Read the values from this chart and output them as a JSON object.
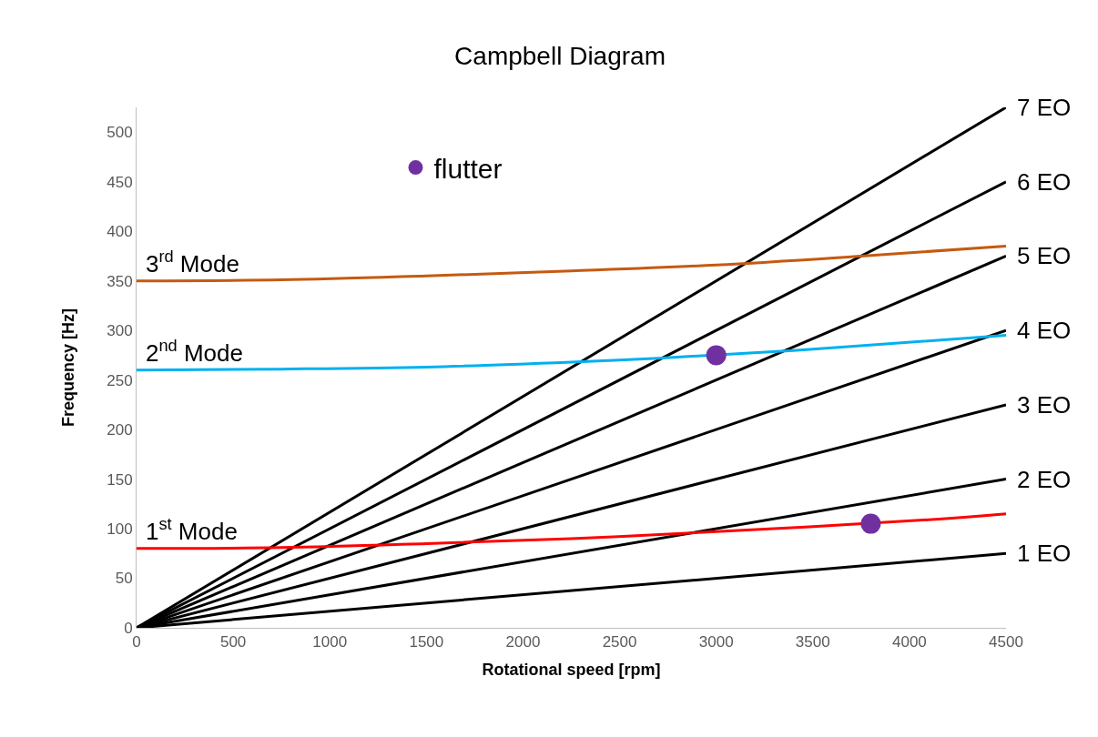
{
  "chart_data": {
    "type": "line",
    "title": "Campbell Diagram",
    "xlabel": "Rotational speed [rpm]",
    "ylabel": "Frequency [Hz]",
    "xlim": [
      0,
      4500
    ],
    "xticks": [
      0,
      500,
      1000,
      1500,
      2000,
      2500,
      3000,
      3500,
      4000,
      4500
    ],
    "ylim": [
      0,
      525
    ],
    "yticks": [
      0,
      50,
      100,
      150,
      200,
      250,
      300,
      350,
      400,
      450,
      500
    ],
    "grid": false,
    "legend": "top left",
    "marker": "none",
    "line_style": "solid",
    "series": [
      {
        "name": "1 EO",
        "color": "#000000",
        "x": [
          0,
          4500
        ],
        "values": [
          0,
          75
        ]
      },
      {
        "name": "2 EO",
        "color": "#000000",
        "x": [
          0,
          4500
        ],
        "values": [
          0,
          150
        ]
      },
      {
        "name": "3 EO",
        "color": "#000000",
        "x": [
          0,
          4500
        ],
        "values": [
          0,
          225
        ]
      },
      {
        "name": "4 EO",
        "color": "#000000",
        "x": [
          0,
          4500
        ],
        "values": [
          0,
          300
        ]
      },
      {
        "name": "5 EO",
        "color": "#000000",
        "x": [
          0,
          4500
        ],
        "values": [
          0,
          375
        ]
      },
      {
        "name": "6 EO",
        "color": "#000000",
        "x": [
          0,
          4500
        ],
        "values": [
          0,
          450
        ]
      },
      {
        "name": "7 EO",
        "color": "#000000",
        "x": [
          0,
          4500
        ],
        "values": [
          0,
          525
        ]
      },
      {
        "name": "1$^{st}$ Mode",
        "color": "#ff0000",
        "x": [
          0,
          750,
          1500,
          2250,
          3000,
          4100,
          4500
        ],
        "values": [
          80,
          81,
          85,
          90,
          97,
          109,
          115
        ]
      },
      {
        "name": "2$^{nd}$ Mode",
        "color": "#00b0f0",
        "x": [
          0,
          750,
          1500,
          2250,
          2700,
          3500,
          4500
        ],
        "values": [
          260,
          261,
          263,
          268,
          272,
          281,
          295
        ]
      },
      {
        "name": "3$^{rd}$ Mode",
        "color": "#c55a11",
        "x": [
          0,
          750,
          1500,
          2250,
          3000,
          3750,
          4500
        ],
        "values": [
          350,
          351,
          355,
          360,
          366,
          375,
          385
        ]
      },
      {
        "type": "scatter",
        "marker": "circle",
        "name": "flutter",
        "color": "#7030a0",
        "x": [
          3000,
          3800
        ],
        "values": [
          275,
          105
        ]
      }
    ]
  }
}
